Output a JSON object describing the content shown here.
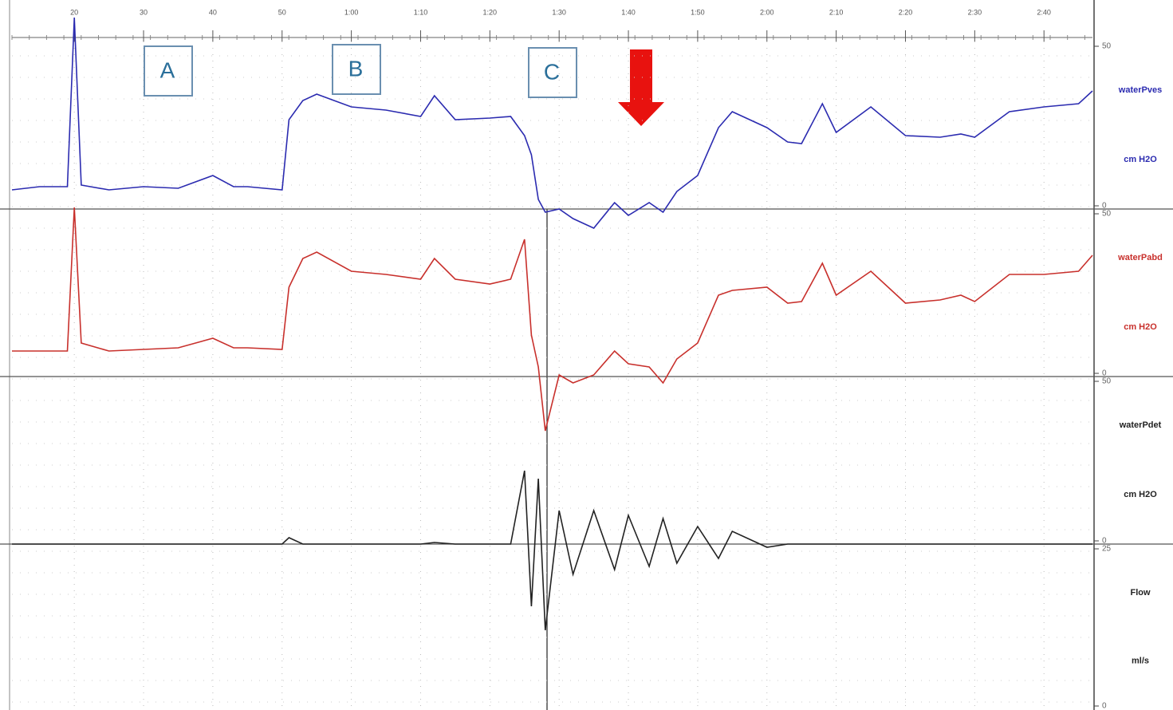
{
  "chart_data": {
    "type": "line",
    "x": [
      11,
      15,
      19,
      20,
      21,
      25,
      30,
      35,
      40,
      43,
      45,
      50,
      51,
      53,
      55,
      60,
      65,
      70,
      72,
      75,
      80,
      83,
      85,
      86,
      87,
      88,
      90,
      92,
      95,
      98,
      100,
      103,
      105,
      107,
      110,
      113,
      115,
      120,
      123,
      125,
      128,
      130,
      135,
      140,
      145,
      148,
      150,
      155,
      160,
      165,
      167
    ],
    "xlim": [
      11,
      167
    ],
    "xticks": [
      20,
      30,
      40,
      50,
      {
        "value": 60,
        "label": "1:00"
      },
      {
        "value": 70,
        "label": "1:10"
      },
      {
        "value": 80,
        "label": "1:20"
      },
      {
        "value": 90,
        "label": "1:30"
      },
      {
        "value": 100,
        "label": "1:40"
      },
      {
        "value": 110,
        "label": "1:50"
      },
      {
        "value": 120,
        "label": "2:00"
      },
      {
        "value": 130,
        "label": "2:10"
      },
      {
        "value": 140,
        "label": "2:20"
      },
      {
        "value": 150,
        "label": "2:30"
      },
      {
        "value": 160,
        "label": "2:40"
      }
    ],
    "grid": true,
    "annotations": [
      "A",
      "B",
      "C"
    ],
    "series": [
      {
        "name": "waterPves",
        "unit": "cm H2O",
        "color": "#2b2bb0",
        "ylim": [
          0,
          50
        ],
        "yticks": [
          0,
          50
        ],
        "values": [
          5,
          6,
          6,
          59,
          6.5,
          5,
          6,
          5.5,
          9.5,
          6,
          6,
          5,
          27,
          33,
          35,
          31,
          30,
          28,
          34.5,
          27,
          27.5,
          28,
          22,
          16,
          2,
          -2,
          -1,
          -4,
          -7,
          1,
          -3,
          1,
          -2,
          4.5,
          9.5,
          24.5,
          29.5,
          24.5,
          20,
          19.5,
          32,
          23,
          31,
          22,
          21.5,
          22.5,
          21.5,
          29.5,
          31,
          32,
          36
        ]
      },
      {
        "name": "waterPabd",
        "unit": "cm H2O",
        "color": "#c8302c",
        "ylim": [
          0,
          50
        ],
        "yticks": [
          0,
          50
        ],
        "values": [
          7,
          7,
          7,
          52,
          9.5,
          7,
          7.5,
          8,
          11,
          8,
          8,
          7.5,
          27,
          36,
          38,
          32,
          31,
          29.5,
          36,
          29.5,
          28,
          29.5,
          42,
          12,
          2,
          -18,
          -0.5,
          -3,
          -0.5,
          7,
          3,
          2,
          -3,
          4.5,
          9.5,
          24.5,
          26,
          27,
          22,
          22.5,
          34.5,
          24.5,
          32,
          22,
          23,
          24.5,
          22.5,
          31,
          31,
          32,
          37
        ]
      },
      {
        "name": "waterPdet",
        "unit": "cm H2O",
        "color": "#222222",
        "ylim": [
          0,
          50
        ],
        "yticks": [
          0,
          50
        ],
        "values": [
          -1,
          -1,
          -1,
          -1,
          -1,
          -1,
          -1,
          -1,
          -1,
          -1,
          -1,
          -1,
          1,
          -1,
          -1,
          -1,
          -1,
          -1,
          -0.5,
          -1,
          -1,
          -1,
          22,
          -20.5,
          19.5,
          -28,
          9.5,
          -10.5,
          9.5,
          -9,
          8,
          -8,
          7,
          -7,
          4.5,
          -5.5,
          3,
          -2,
          -1,
          -1,
          -1,
          -1,
          -1,
          -1,
          -1,
          -1,
          -1,
          -1,
          -1,
          -1,
          -1
        ]
      },
      {
        "name": "Flow",
        "unit": "ml/s",
        "color": "#222222",
        "ylim": [
          0,
          25
        ],
        "yticks": [
          0,
          25
        ]
      }
    ]
  }
}
